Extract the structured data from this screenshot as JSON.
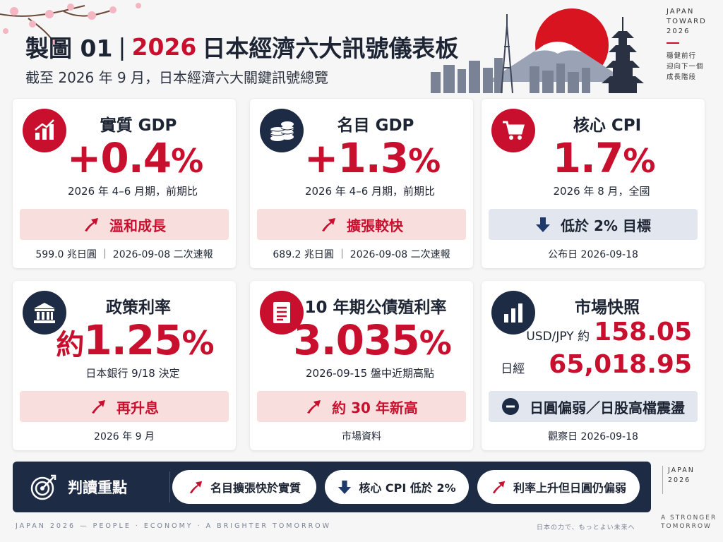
{
  "header": {
    "title_prefix": "製圖 01",
    "title_sep": "|",
    "title_year": "2026",
    "title_main": "日本經濟六大訊號儀表板",
    "subtitle": "截至 2026 年 9 月，日本經濟六大關鍵訊號總覽"
  },
  "side_brand": {
    "line1": "JAPAN",
    "line2": "TOWARD",
    "line3": "2026",
    "motto1": "穩健前行",
    "motto2": "迎向下一個",
    "motto3": "成長階段"
  },
  "cards": [
    {
      "title": "實質 GDP",
      "value": "+0.4",
      "unit": "%",
      "note": "2026 年 4–6 月期，前期比",
      "status": "溫和成長",
      "status_icon": "trend-up-arrow-icon",
      "footnote": "599.0 兆日圓 ｜ 2026-09-08 二次速報",
      "icon": "growth-chart-icon"
    },
    {
      "title": "名目 GDP",
      "value": "+1.3",
      "unit": "%",
      "note": "2026 年 4–6 月期，前期比",
      "status": "擴張較快",
      "status_icon": "trend-up-arrow-icon",
      "footnote": "689.2 兆日圓 ｜ 2026-09-08 二次速報",
      "icon": "coin-stack-icon"
    },
    {
      "title": "核心 CPI",
      "value": "1.7",
      "unit": "%",
      "note": "2026 年 8 月，全國",
      "status": "低於 2% 目標",
      "status_icon": "arrow-down-icon",
      "footnote": "公布日 2026-09-18",
      "icon": "shopping-cart-icon"
    },
    {
      "title": "政策利率",
      "prefix": "約",
      "value": "1.25",
      "unit": "%",
      "note": "日本銀行 9/18 決定",
      "status": "再升息",
      "status_icon": "trend-up-arrow-icon",
      "footnote": "2026 年 9 月",
      "icon": "bank-building-icon"
    },
    {
      "title": "10 年期公債殖利率",
      "value": "3.035",
      "unit": "%",
      "note": "2026-09-15 盤中近期高點",
      "status": "約 30 年新高",
      "status_icon": "trend-up-arrow-icon",
      "footnote": "市場資料",
      "icon": "document-icon"
    },
    {
      "title": "市場快照",
      "usdjpy_label": "USD/JPY 約",
      "usdjpy_value": "158.05",
      "nikkei_label": "日經",
      "nikkei_value": "65,018.95",
      "status": "日圓偏弱／日股高檔震盪",
      "status_icon": "minus-circle-icon",
      "footnote": "觀察日 2026-09-18",
      "icon": "bar-chart-icon"
    }
  ],
  "takeaways": {
    "title": "判讀重點",
    "items": [
      {
        "label": "名目擴張快於實質",
        "icon": "trend-up-arrow-icon"
      },
      {
        "label": "核心 CPI 低於 2%",
        "icon": "arrow-down-icon"
      },
      {
        "label": "利率上升但日圓仍偏弱",
        "icon": "trend-up-arrow-icon"
      }
    ]
  },
  "side_brand_bottom": {
    "line1": "JAPAN",
    "line2": "2026"
  },
  "footer": {
    "left": "JAPAN  2026  —  PEOPLE  ·  ECONOMY  ·  A BRIGHTER TOMORROW",
    "right": "日本の力で、もっとよい未来へ",
    "brand1": "A STRONGER",
    "brand2": "TOMORROW"
  },
  "colors": {
    "accent": "#c8102e",
    "navy": "#1e2b45",
    "status_red_bg": "#f9dede",
    "status_grey_bg": "#e2e6ee"
  }
}
